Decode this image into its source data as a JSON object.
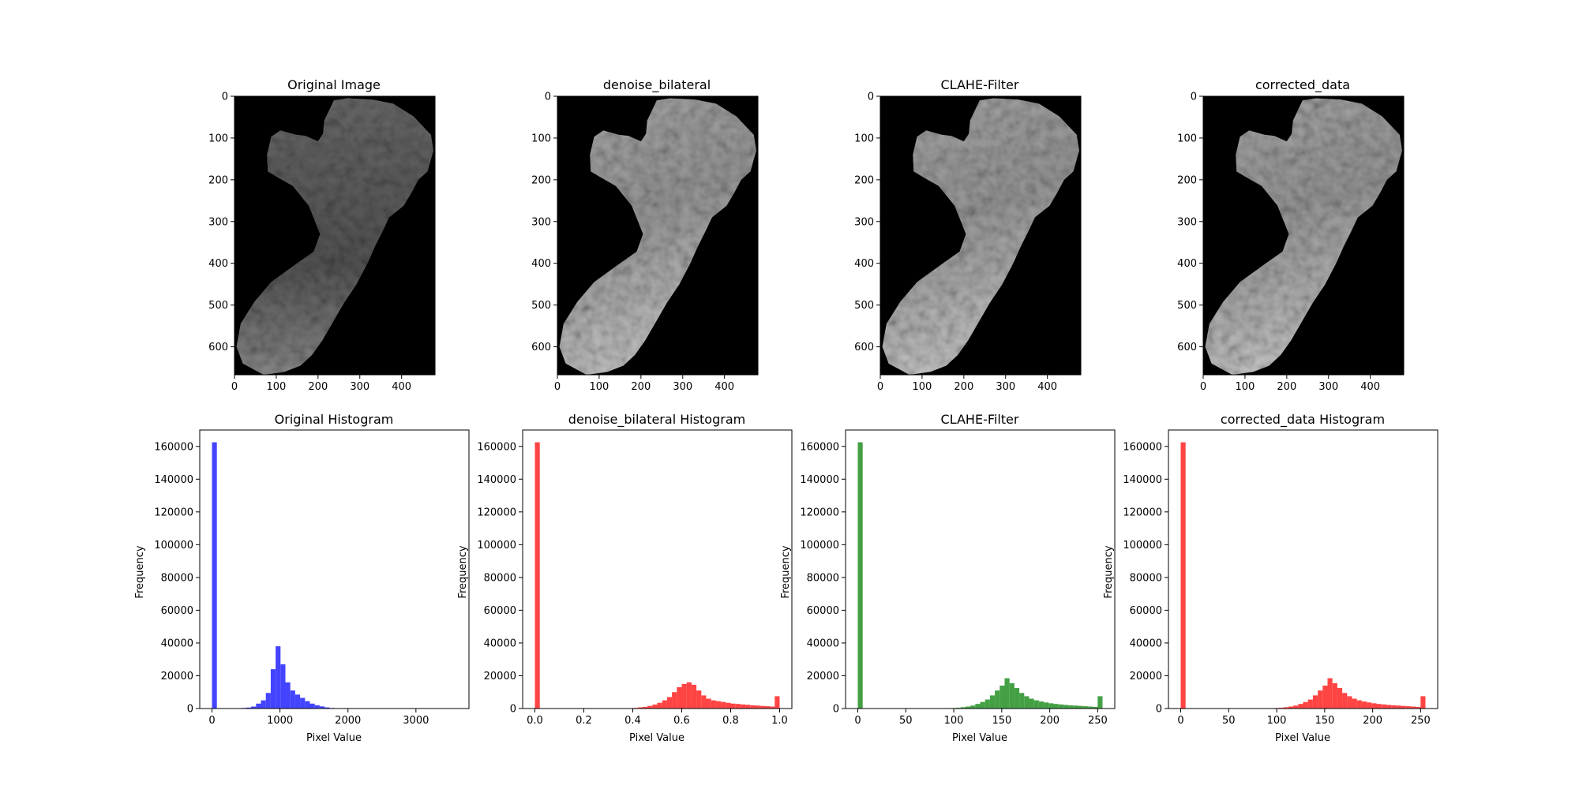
{
  "figure": {
    "background": "#ffffff"
  },
  "image_panels": [
    {
      "title": "Original Image",
      "variant": "original",
      "xticks": [
        "0",
        "100",
        "200",
        "300",
        "400"
      ],
      "yticks": [
        "0",
        "100",
        "200",
        "300",
        "400",
        "500",
        "600"
      ],
      "image": {
        "rows": 667,
        "cols": 480,
        "background": "#000000"
      }
    },
    {
      "title": "denoise_bilateral",
      "variant": "enhanced",
      "xticks": [
        "0",
        "100",
        "200",
        "300",
        "400"
      ],
      "yticks": [
        "0",
        "100",
        "200",
        "300",
        "400",
        "500",
        "600"
      ],
      "image": {
        "rows": 667,
        "cols": 480,
        "background": "#000000"
      }
    },
    {
      "title": "CLAHE-Filter",
      "variant": "enhanced",
      "xticks": [
        "0",
        "100",
        "200",
        "300",
        "400"
      ],
      "yticks": [
        "0",
        "100",
        "200",
        "300",
        "400",
        "500",
        "600"
      ],
      "image": {
        "rows": 667,
        "cols": 480,
        "background": "#000000"
      }
    },
    {
      "title": "corrected_data",
      "variant": "enhanced",
      "xticks": [
        "0",
        "100",
        "200",
        "300",
        "400"
      ],
      "yticks": [
        "0",
        "100",
        "200",
        "300",
        "400",
        "500",
        "600"
      ],
      "image": {
        "rows": 667,
        "cols": 480,
        "background": "#000000"
      }
    }
  ],
  "chart_data": [
    {
      "type": "bar",
      "title": "Original Histogram",
      "xlabel": "Pixel Value",
      "ylabel": "Frequency",
      "color": "#4444ff",
      "xlim": [
        -180,
        3780
      ],
      "ylim": [
        0,
        170000
      ],
      "xticks": [
        0,
        1000,
        2000,
        3000
      ],
      "yticks": [
        0,
        20000,
        40000,
        60000,
        80000,
        100000,
        120000,
        140000,
        160000
      ],
      "bin_width": 72,
      "bins": [
        {
          "x": 0,
          "v": 162500
        },
        {
          "x": 360,
          "v": 150
        },
        {
          "x": 432,
          "v": 350
        },
        {
          "x": 504,
          "v": 600
        },
        {
          "x": 576,
          "v": 1200
        },
        {
          "x": 648,
          "v": 3000
        },
        {
          "x": 720,
          "v": 5000
        },
        {
          "x": 792,
          "v": 9500
        },
        {
          "x": 864,
          "v": 24000
        },
        {
          "x": 936,
          "v": 38000
        },
        {
          "x": 1008,
          "v": 27000
        },
        {
          "x": 1080,
          "v": 16000
        },
        {
          "x": 1152,
          "v": 11000
        },
        {
          "x": 1224,
          "v": 8500
        },
        {
          "x": 1296,
          "v": 6500
        },
        {
          "x": 1368,
          "v": 4500
        },
        {
          "x": 1440,
          "v": 3000
        },
        {
          "x": 1512,
          "v": 2000
        },
        {
          "x": 1584,
          "v": 1300
        },
        {
          "x": 1656,
          "v": 700
        },
        {
          "x": 1728,
          "v": 350
        },
        {
          "x": 1800,
          "v": 150
        }
      ]
    },
    {
      "type": "bar",
      "title": "denoise_bilateral Histogram",
      "xlabel": "Pixel Value",
      "ylabel": "Frequency",
      "color": "#ff4444",
      "xlim": [
        -0.05,
        1.05
      ],
      "ylim": [
        0,
        170000
      ],
      "xticks": [
        0.0,
        0.2,
        0.4,
        0.6,
        0.8,
        1.0
      ],
      "xtick_labels": [
        "0.0",
        "0.2",
        "0.4",
        "0.6",
        "0.8",
        "1.0"
      ],
      "yticks": [
        0,
        20000,
        40000,
        60000,
        80000,
        100000,
        120000,
        140000,
        160000
      ],
      "bin_width": 0.02,
      "bins": [
        {
          "x": 0.0,
          "v": 162500
        },
        {
          "x": 0.38,
          "v": 200
        },
        {
          "x": 0.4,
          "v": 400
        },
        {
          "x": 0.42,
          "v": 700
        },
        {
          "x": 0.44,
          "v": 1000
        },
        {
          "x": 0.46,
          "v": 1600
        },
        {
          "x": 0.48,
          "v": 2400
        },
        {
          "x": 0.5,
          "v": 3500
        },
        {
          "x": 0.52,
          "v": 5000
        },
        {
          "x": 0.54,
          "v": 7000
        },
        {
          "x": 0.56,
          "v": 10000
        },
        {
          "x": 0.58,
          "v": 13000
        },
        {
          "x": 0.6,
          "v": 15000
        },
        {
          "x": 0.62,
          "v": 16000
        },
        {
          "x": 0.64,
          "v": 14500
        },
        {
          "x": 0.66,
          "v": 11000
        },
        {
          "x": 0.68,
          "v": 8000
        },
        {
          "x": 0.7,
          "v": 6000
        },
        {
          "x": 0.72,
          "v": 5000
        },
        {
          "x": 0.74,
          "v": 4500
        },
        {
          "x": 0.76,
          "v": 4000
        },
        {
          "x": 0.78,
          "v": 3500
        },
        {
          "x": 0.8,
          "v": 3000
        },
        {
          "x": 0.82,
          "v": 2800
        },
        {
          "x": 0.84,
          "v": 2500
        },
        {
          "x": 0.86,
          "v": 2300
        },
        {
          "x": 0.88,
          "v": 2000
        },
        {
          "x": 0.9,
          "v": 1800
        },
        {
          "x": 0.92,
          "v": 1600
        },
        {
          "x": 0.94,
          "v": 1400
        },
        {
          "x": 0.96,
          "v": 1200
        },
        {
          "x": 0.98,
          "v": 7500
        }
      ]
    },
    {
      "type": "bar",
      "title": "CLAHE-Filter",
      "xlabel": "Pixel Value",
      "ylabel": "Frequency",
      "color": "#44a044",
      "xlim": [
        -12.75,
        267.75
      ],
      "ylim": [
        0,
        170000
      ],
      "xticks": [
        0,
        50,
        100,
        150,
        200,
        250
      ],
      "yticks": [
        0,
        20000,
        40000,
        60000,
        80000,
        100000,
        120000,
        140000,
        160000
      ],
      "bin_width": 5.1,
      "bins": [
        {
          "x": 0,
          "v": 162500
        },
        {
          "x": 96.9,
          "v": 300
        },
        {
          "x": 102,
          "v": 500
        },
        {
          "x": 107.1,
          "v": 800
        },
        {
          "x": 112.2,
          "v": 1200
        },
        {
          "x": 117.3,
          "v": 1800
        },
        {
          "x": 122.4,
          "v": 2800
        },
        {
          "x": 127.5,
          "v": 4000
        },
        {
          "x": 132.6,
          "v": 5500
        },
        {
          "x": 137.7,
          "v": 8000
        },
        {
          "x": 142.8,
          "v": 11000
        },
        {
          "x": 147.9,
          "v": 14000
        },
        {
          "x": 153,
          "v": 18500
        },
        {
          "x": 158.1,
          "v": 15500
        },
        {
          "x": 163.2,
          "v": 12500
        },
        {
          "x": 168.3,
          "v": 9500
        },
        {
          "x": 173.4,
          "v": 7500
        },
        {
          "x": 178.5,
          "v": 6000
        },
        {
          "x": 183.6,
          "v": 5000
        },
        {
          "x": 188.7,
          "v": 4300
        },
        {
          "x": 193.8,
          "v": 3700
        },
        {
          "x": 198.9,
          "v": 3200
        },
        {
          "x": 204,
          "v": 2800
        },
        {
          "x": 209.1,
          "v": 2500
        },
        {
          "x": 214.2,
          "v": 2200
        },
        {
          "x": 219.3,
          "v": 2000
        },
        {
          "x": 224.4,
          "v": 1800
        },
        {
          "x": 229.5,
          "v": 1600
        },
        {
          "x": 234.6,
          "v": 1400
        },
        {
          "x": 239.7,
          "v": 1200
        },
        {
          "x": 244.8,
          "v": 1000
        },
        {
          "x": 249.9,
          "v": 7500
        }
      ]
    },
    {
      "type": "bar",
      "title": "corrected_data Histogram",
      "xlabel": "Pixel Value",
      "ylabel": "Frequency",
      "color": "#ff4444",
      "xlim": [
        -12.75,
        267.75
      ],
      "ylim": [
        0,
        170000
      ],
      "xticks": [
        0,
        50,
        100,
        150,
        200,
        250
      ],
      "yticks": [
        0,
        20000,
        40000,
        60000,
        80000,
        100000,
        120000,
        140000,
        160000
      ],
      "bin_width": 5.1,
      "bins": [
        {
          "x": 0,
          "v": 162500
        },
        {
          "x": 96.9,
          "v": 300
        },
        {
          "x": 102,
          "v": 500
        },
        {
          "x": 107.1,
          "v": 800
        },
        {
          "x": 112.2,
          "v": 1200
        },
        {
          "x": 117.3,
          "v": 1800
        },
        {
          "x": 122.4,
          "v": 2800
        },
        {
          "x": 127.5,
          "v": 4000
        },
        {
          "x": 132.6,
          "v": 5500
        },
        {
          "x": 137.7,
          "v": 8000
        },
        {
          "x": 142.8,
          "v": 11000
        },
        {
          "x": 147.9,
          "v": 14000
        },
        {
          "x": 153,
          "v": 18500
        },
        {
          "x": 158.1,
          "v": 15500
        },
        {
          "x": 163.2,
          "v": 12500
        },
        {
          "x": 168.3,
          "v": 9500
        },
        {
          "x": 173.4,
          "v": 7500
        },
        {
          "x": 178.5,
          "v": 6000
        },
        {
          "x": 183.6,
          "v": 5000
        },
        {
          "x": 188.7,
          "v": 4300
        },
        {
          "x": 193.8,
          "v": 3700
        },
        {
          "x": 198.9,
          "v": 3200
        },
        {
          "x": 204,
          "v": 2800
        },
        {
          "x": 209.1,
          "v": 2500
        },
        {
          "x": 214.2,
          "v": 2200
        },
        {
          "x": 219.3,
          "v": 2000
        },
        {
          "x": 224.4,
          "v": 1800
        },
        {
          "x": 229.5,
          "v": 1600
        },
        {
          "x": 234.6,
          "v": 1400
        },
        {
          "x": 239.7,
          "v": 1200
        },
        {
          "x": 244.8,
          "v": 1000
        },
        {
          "x": 249.9,
          "v": 7500
        }
      ]
    }
  ]
}
